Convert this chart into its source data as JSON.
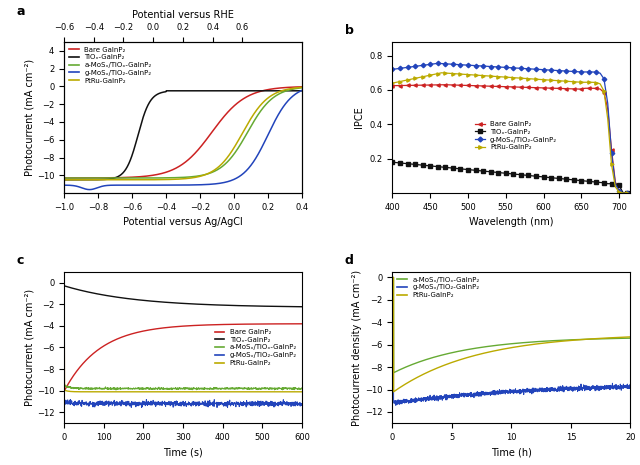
{
  "fig_width": 6.4,
  "fig_height": 4.65,
  "bg_color": "#f5f5f0",
  "panel_a": {
    "xlabel": "Potential versus Ag/AgCl",
    "xlabel2": "Potential versus RHE",
    "ylabel": "Photocurrent (mA cm⁻²)",
    "xlim": [
      -1.0,
      0.4
    ],
    "ylim": [
      -12,
      5
    ],
    "xlim2": [
      -0.6,
      0.6
    ],
    "yticks": [
      -10,
      -8,
      -6,
      -4,
      -2,
      0,
      2,
      4
    ],
    "xticks": [
      -1.0,
      -0.8,
      -0.6,
      -0.4,
      -0.2,
      0.0,
      0.2,
      0.4
    ],
    "xticks2": [
      -0.6,
      -0.4,
      -0.2,
      0.0,
      0.2,
      0.4,
      0.6
    ],
    "curves": {
      "bare": {
        "color": "#cc2222",
        "label": "Bare GaInP₂"
      },
      "tio2": {
        "color": "#111111",
        "label": "TiOₓ-GaInP₂"
      },
      "amos": {
        "color": "#66aa33",
        "label": "a-MoSₓ/TiOₓ-GaInP₂"
      },
      "gmos": {
        "color": "#2244bb",
        "label": "g-MoSₓ/TiO₂-GaInP₂"
      },
      "ptru": {
        "color": "#bbaa00",
        "label": "PtRu-GaInP₂"
      }
    }
  },
  "panel_b": {
    "xlabel": "Wavelength (nm)",
    "ylabel": "IPCE",
    "xlim": [
      400,
      715
    ],
    "ylim": [
      0,
      0.88
    ],
    "yticks": [
      0.2,
      0.4,
      0.6,
      0.8
    ],
    "xticks": [
      400,
      450,
      500,
      550,
      600,
      650,
      700
    ],
    "curves": {
      "bare": {
        "color": "#cc2222",
        "label": "Bare GaInP₂",
        "marker": "<"
      },
      "tio2": {
        "color": "#111111",
        "label": "TiOₓ-GaInP₂",
        "marker": "s"
      },
      "gmos": {
        "color": "#2244bb",
        "label": "g-MoSₓ/TiO₂-GaInP₂",
        "marker": "D"
      },
      "ptru": {
        "color": "#bbaa00",
        "label": "PtRu-GaInP₂",
        "marker": ">"
      }
    }
  },
  "panel_c": {
    "xlabel": "Time (s)",
    "ylabel": "Photocurrent (mA cm⁻²)",
    "xlim": [
      0,
      600
    ],
    "ylim": [
      -13,
      1
    ],
    "yticks": [
      0,
      -2,
      -4,
      -6,
      -8,
      -10,
      -12
    ],
    "xticks": [
      0,
      100,
      200,
      300,
      400,
      500,
      600
    ],
    "curves": {
      "bare": {
        "color": "#cc2222",
        "label": "Bare GaInP₂"
      },
      "tio2": {
        "color": "#111111",
        "label": "TiOₓ-GaInP₂"
      },
      "amos": {
        "color": "#66aa33",
        "label": "a-MoSₓ/TiOₓ-GaInP₂"
      },
      "gmos": {
        "color": "#2244bb",
        "label": "g-MoSₓ/TiO₂-GaInP₂"
      },
      "ptru": {
        "color": "#bbaa00",
        "label": "PtRu-GaInP₂"
      }
    }
  },
  "panel_d": {
    "xlabel": "Time (h)",
    "ylabel": "Photocurrent density (mA cm⁻²)",
    "xlim": [
      0,
      20
    ],
    "ylim": [
      -13,
      0.5
    ],
    "yticks": [
      -12,
      -10,
      -8,
      -6,
      -4,
      -2,
      0
    ],
    "xticks": [
      0,
      5,
      10,
      15,
      20
    ],
    "curves": {
      "amos": {
        "color": "#66aa33",
        "label": "a-MoSₓ/TiOₓ-GaInP₂"
      },
      "gmos": {
        "color": "#2244bb",
        "label": "g-MoSₓ/TiO₂-GaInP₂"
      },
      "ptru": {
        "color": "#bbaa00",
        "label": "PtRu-GaInP₂"
      }
    }
  }
}
